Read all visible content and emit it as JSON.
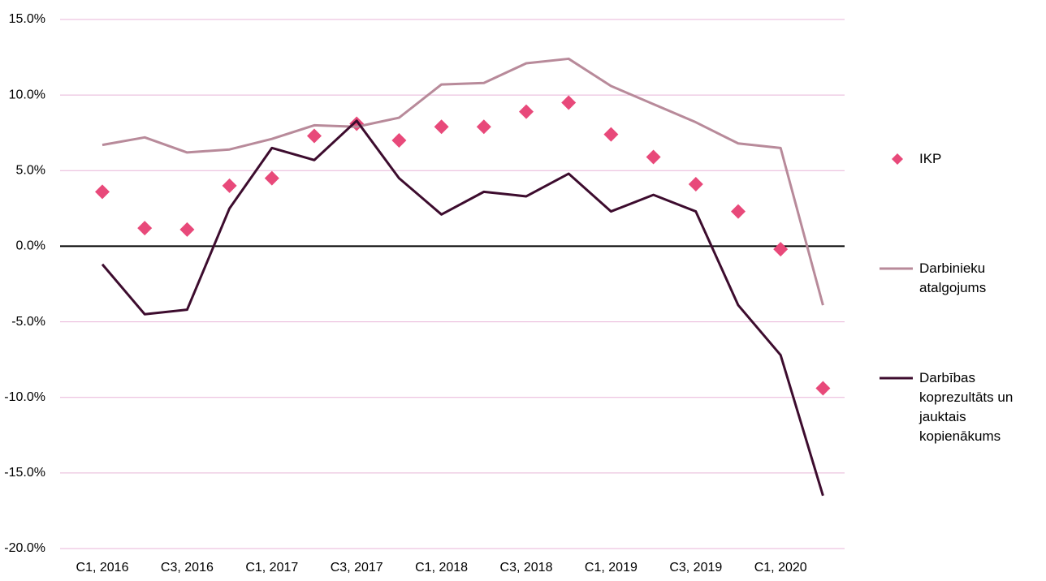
{
  "chart_data": {
    "type": "line",
    "categories": [
      "C1, 2016",
      null,
      "C3, 2016",
      null,
      "C1, 2017",
      null,
      "C3, 2017",
      null,
      "C1, 2018",
      null,
      "C3, 2018",
      null,
      "C1, 2019",
      null,
      "C3, 2019",
      null,
      "C1, 2020",
      null
    ],
    "series": [
      {
        "name": "IKP",
        "type": "scatter",
        "color": "#e8497a",
        "values": [
          3.6,
          1.2,
          1.1,
          4.0,
          4.5,
          7.3,
          8.1,
          7.0,
          7.9,
          7.9,
          8.9,
          9.5,
          7.4,
          5.9,
          4.1,
          2.3,
          -0.2,
          -9.4
        ]
      },
      {
        "name": "Darbinieku atalgojums",
        "type": "line",
        "color": "#b88a9a",
        "values": [
          6.7,
          7.2,
          6.2,
          6.4,
          7.1,
          8.0,
          7.9,
          8.5,
          10.7,
          10.8,
          12.1,
          12.4,
          10.6,
          9.4,
          8.2,
          6.8,
          6.5,
          -3.9
        ]
      },
      {
        "name": "Darbības koprezultāts un jauktais kopienākums",
        "type": "line",
        "color": "#3d0c2e",
        "values": [
          -1.2,
          -4.5,
          -4.2,
          2.5,
          6.5,
          5.7,
          8.3,
          4.5,
          2.1,
          3.6,
          3.3,
          4.8,
          2.3,
          3.4,
          2.3,
          -3.9,
          -7.2,
          -16.5
        ]
      }
    ],
    "ylim": [
      -20,
      15
    ],
    "yticks": [
      {
        "value": -20,
        "label": "-20.0%"
      },
      {
        "value": -15,
        "label": "-15.0%"
      },
      {
        "value": -10,
        "label": "-10.0%"
      },
      {
        "value": -5,
        "label": "-5.0%"
      },
      {
        "value": 0,
        "label": "0.0%"
      },
      {
        "value": 5,
        "label": "5.0%"
      },
      {
        "value": 10,
        "label": "10.0%"
      },
      {
        "value": 15,
        "label": "15.0%"
      }
    ],
    "grid": true,
    "grid_color": "#e8b4d8",
    "legend": "right"
  }
}
